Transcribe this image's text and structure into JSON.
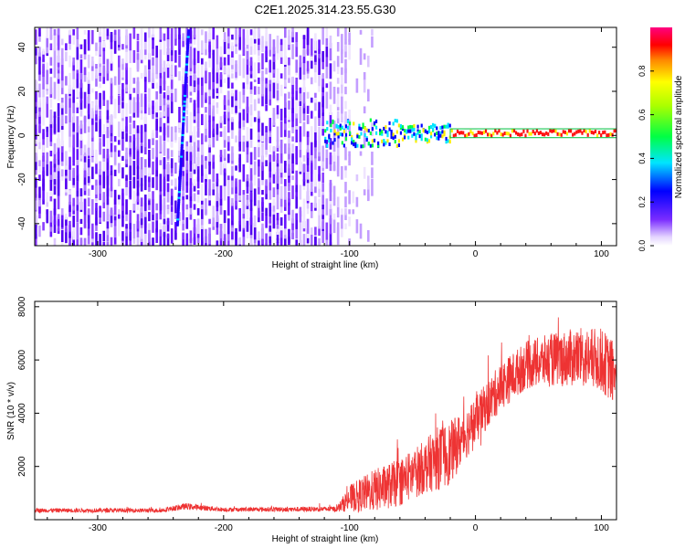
{
  "title": "C2E1.2025.314.23.55.G30",
  "colorbar": {
    "label": "Normalized spectral amplitude",
    "ticks": [
      "0.0",
      "0.2",
      "0.4",
      "0.6",
      "0.8"
    ],
    "tick_values": [
      0.0,
      0.2,
      0.4,
      0.6,
      0.8
    ],
    "range": [
      0,
      1
    ],
    "colormap": [
      "#ffffff",
      "#6a00ff",
      "#0000ff",
      "#00e5ff",
      "#00ff00",
      "#ffff00",
      "#ff8800",
      "#ff0000",
      "#ff0080"
    ]
  },
  "colors": {
    "snr_line": "#ee3333",
    "axis": "#000000"
  },
  "chart_data": [
    {
      "type": "heatmap",
      "xlabel": "Height of straight line (km)",
      "ylabel": "Frequency (Hz)",
      "xlim": [
        -350,
        112
      ],
      "ylim": [
        -50,
        49
      ],
      "x_ticks": [
        -300,
        -200,
        -100,
        0,
        100
      ],
      "x_tick_labels": [
        "-300",
        "-200",
        "-100",
        "0",
        "100"
      ],
      "y_ticks": [
        -40,
        -20,
        0,
        20,
        40
      ],
      "y_tick_labels": [
        "-40",
        "-20",
        "0",
        "20",
        "40"
      ],
      "features": {
        "noise_extent_km": [
          -350,
          -80
        ],
        "diagonal_streak": {
          "from": [
            -237,
            -40
          ],
          "to": [
            -228,
            49
          ]
        },
        "signal_band": {
          "x_start": -120,
          "x_end": 112,
          "freq": 1,
          "saturated_from": -20
        }
      }
    },
    {
      "type": "line",
      "xlabel": "Height of straight line (km)",
      "ylabel": "SNR (10 * v/v)",
      "xlim": [
        -350,
        112
      ],
      "ylim": [
        0,
        8200
      ],
      "x_ticks": [
        -300,
        -200,
        -100,
        0,
        100
      ],
      "x_tick_labels": [
        "-300",
        "-200",
        "-100",
        "0",
        "100"
      ],
      "y_ticks": [
        2000,
        4000,
        6000,
        8000
      ],
      "y_tick_labels": [
        "2000",
        "4000",
        "6000",
        "8000"
      ],
      "series": [
        {
          "name": "SNR",
          "envelope_x": [
            -350,
            -250,
            -230,
            -200,
            -110,
            -100,
            -80,
            -60,
            -40,
            -30,
            -20,
            -10,
            0,
            20,
            40,
            60,
            80,
            100,
            112
          ],
          "envelope_mean": [
            350,
            350,
            500,
            380,
            400,
            800,
            1100,
            1400,
            2000,
            2300,
            2500,
            3100,
            3700,
            5000,
            5800,
            6000,
            6100,
            6000,
            5400
          ],
          "envelope_spread": [
            80,
            80,
            120,
            80,
            100,
            500,
            800,
            900,
            1000,
            1200,
            1200,
            1000,
            900,
            900,
            900,
            1000,
            1100,
            1200,
            1200
          ]
        }
      ]
    }
  ]
}
